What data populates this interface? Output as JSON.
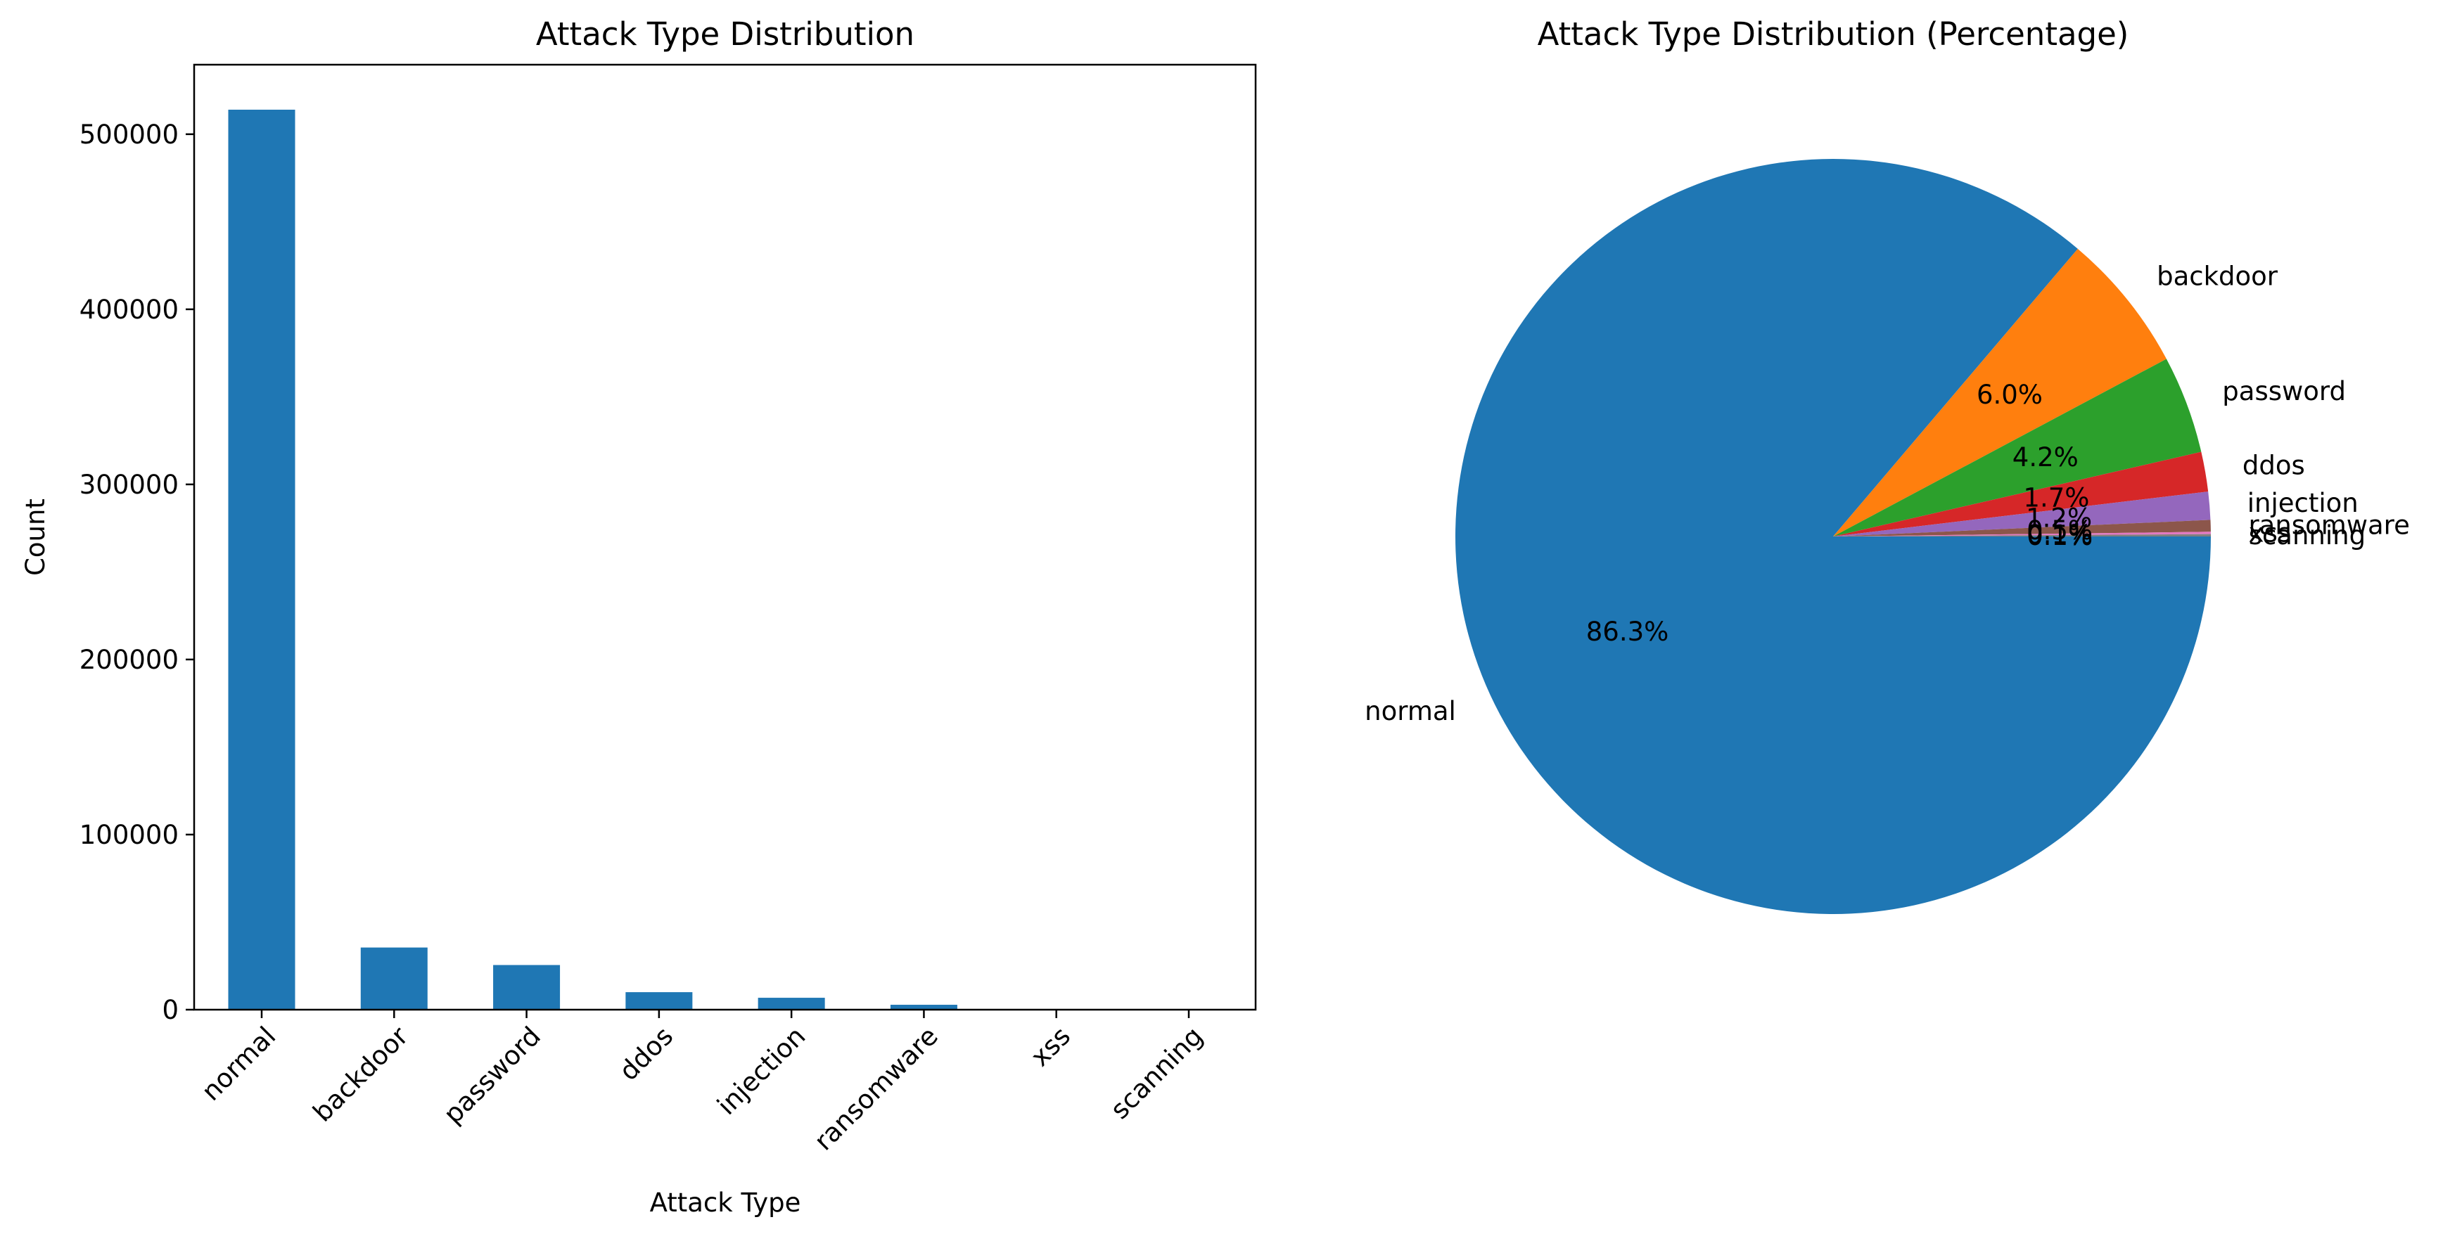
{
  "chart_data": [
    {
      "type": "bar",
      "title": "Attack Type Distribution",
      "xlabel": "Attack Type",
      "ylabel": "Count",
      "categories": [
        "normal",
        "backdoor",
        "password",
        "ddos",
        "injection",
        "ransomware",
        "xss",
        "scanning"
      ],
      "values": [
        514000,
        35500,
        25500,
        10000,
        6800,
        2800,
        120,
        40
      ],
      "ylim": [
        0,
        539700
      ],
      "yticks": [
        0,
        100000,
        200000,
        300000,
        400000,
        500000
      ],
      "color": "#1f77b4",
      "grid": false,
      "legend": "none"
    },
    {
      "type": "pie",
      "title": "Attack Type Distribution (Percentage)",
      "labels": [
        "normal",
        "backdoor",
        "password",
        "ddos",
        "injection",
        "ransomware",
        "xss",
        "scanning"
      ],
      "values": [
        86.3,
        6.0,
        4.2,
        1.7,
        1.2,
        0.5,
        0.1,
        0.1
      ],
      "pct_labels": [
        "86.3%",
        "6.0%",
        "4.2%",
        "1.7%",
        "1.2%",
        "0.5%",
        "0.1%",
        "0.1%"
      ],
      "colors": [
        "#1f77b4",
        "#ff7f0e",
        "#2ca02c",
        "#d62728",
        "#9467bd",
        "#8c564b",
        "#e377c2",
        "#7f7f7f"
      ],
      "start_angle": "counterclockwise from 0 degrees (clockwise drawing)"
    }
  ]
}
